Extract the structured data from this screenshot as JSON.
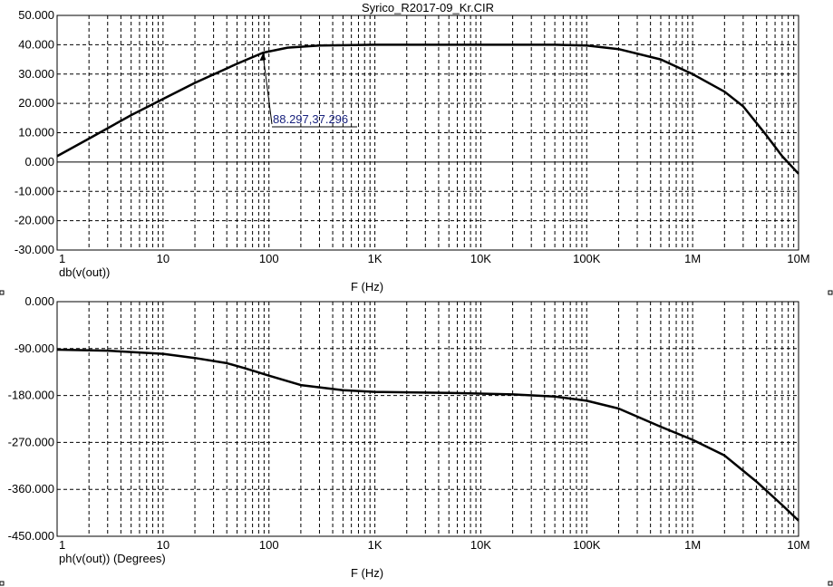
{
  "title": "Syrico_R2017-09_Kr.CIR",
  "chart_data": [
    {
      "type": "line",
      "xscale": "log",
      "xlim": [
        1,
        10000000
      ],
      "ylim": [
        -30,
        50
      ],
      "xticks": [
        1,
        10,
        100,
        1000,
        10000,
        100000,
        1000000,
        10000000
      ],
      "xtick_labels": [
        "1",
        "10",
        "100",
        "1K",
        "10K",
        "100K",
        "1M",
        "10M"
      ],
      "yticks": [
        50,
        40,
        30,
        20,
        10,
        0,
        -10,
        -20,
        -30
      ],
      "ytick_labels": [
        "50.000",
        "40.000",
        "30.000",
        "20.000",
        "10.000",
        "0.000",
        "-10.000",
        "-20.000",
        "-30.000"
      ],
      "ylabel": "db(v(out))",
      "xlabel": "F (Hz)",
      "grid": true,
      "series": [
        {
          "x": [
            1,
            2,
            5,
            10,
            20,
            50,
            88.297,
            150,
            300,
            1000,
            10000,
            50000,
            100000,
            200000,
            500000,
            1000000,
            2000000,
            3000000,
            5000000,
            7000000,
            10000000
          ],
          "y": [
            2,
            8,
            16,
            21.5,
            27,
            33.5,
            37.296,
            39,
            39.7,
            40,
            40,
            40,
            39.7,
            38.5,
            35,
            30,
            24,
            19,
            9,
            2,
            -4
          ]
        }
      ],
      "annotation": {
        "text": "88.297,37.296",
        "x": 88.297,
        "y": 37.296
      }
    },
    {
      "type": "line",
      "xscale": "log",
      "xlim": [
        1,
        10000000
      ],
      "ylim": [
        -450,
        0
      ],
      "xticks": [
        1,
        10,
        100,
        1000,
        10000,
        100000,
        1000000,
        10000000
      ],
      "xtick_labels": [
        "1",
        "10",
        "100",
        "1K",
        "10K",
        "100K",
        "1M",
        "10M"
      ],
      "yticks": [
        0,
        -90,
        -180,
        -270,
        -360,
        -450
      ],
      "ytick_labels": [
        "0.000",
        "-90.000",
        "-180.000",
        "-270.000",
        "-360.000",
        "-450.000"
      ],
      "ylabel": "ph(v(out)) (Degrees)",
      "xlabel": "F (Hz)",
      "grid": true,
      "series": [
        {
          "x": [
            1,
            3,
            10,
            20,
            40,
            60,
            100,
            200,
            500,
            1000,
            5000,
            20000,
            50000,
            100000,
            200000,
            500000,
            1000000,
            2000000,
            4000000,
            7000000,
            10000000
          ],
          "y": [
            -92,
            -94,
            -100,
            -108,
            -118,
            -128,
            -142,
            -160,
            -170,
            -173,
            -175,
            -178,
            -182,
            -190,
            -205,
            -240,
            -265,
            -295,
            -345,
            -390,
            -420
          ]
        }
      ]
    }
  ]
}
